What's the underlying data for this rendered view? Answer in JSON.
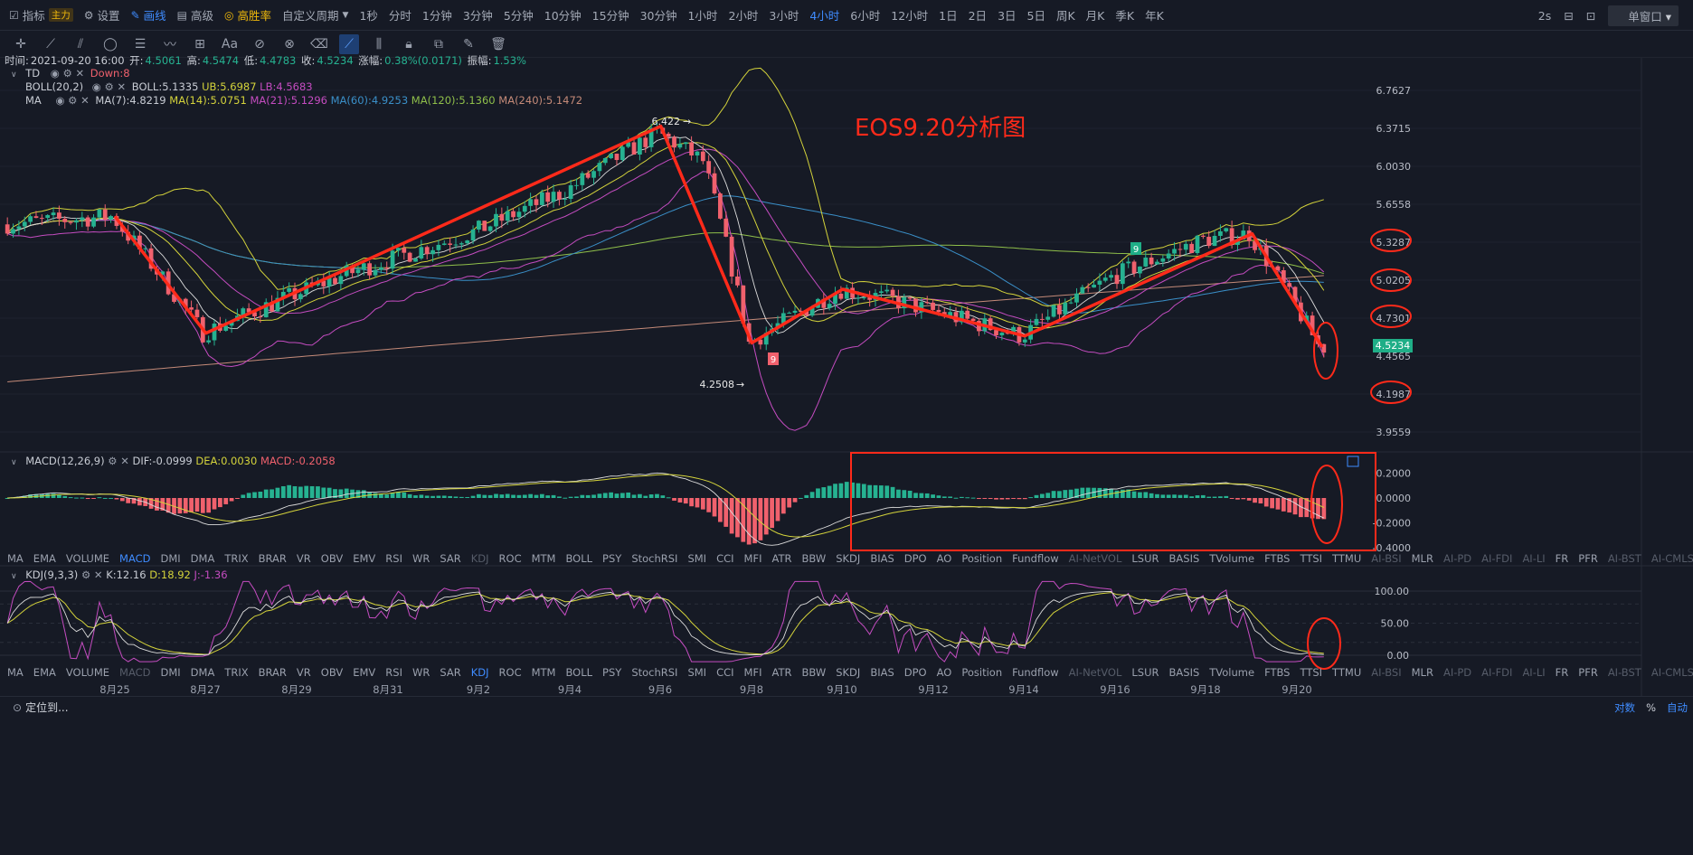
{
  "top": {
    "indicator_label": "指标",
    "main_tag": "主力",
    "settings_label": "设置",
    "draw_label": "画线",
    "advanced_label": "高级",
    "winrate_label": "高胜率",
    "custom_period_label": "自定义周期",
    "periods": [
      "1秒",
      "分时",
      "1分钟",
      "3分钟",
      "5分钟",
      "10分钟",
      "15分钟",
      "30分钟",
      "1小时",
      "2小时",
      "3小时",
      "4小时",
      "6小时",
      "12小时",
      "1日",
      "2日",
      "3日",
      "5日",
      "周K",
      "月K",
      "季K",
      "年K"
    ],
    "active_period": "4小时",
    "refresh": "2s",
    "window_label": "单窗口"
  },
  "ohlc": {
    "time_label": "时间:",
    "time": "2021-09-20 16:00",
    "open_label": "开:",
    "open": "4.5061",
    "high_label": "高:",
    "high": "4.5474",
    "low_label": "低:",
    "low": "4.4783",
    "close_label": "收:",
    "close": "4.5234",
    "change_label": "涨幅:",
    "change": "0.38%(0.0171)",
    "amp_label": "振幅:",
    "amp": "1.53%"
  },
  "overlays": {
    "td": {
      "name": "TD",
      "value": "Down:8"
    },
    "boll": {
      "name": "BOLL(20,2)",
      "mid": "BOLL:5.1335",
      "ub": "UB:5.6987",
      "lb": "LB:4.5683"
    },
    "ma": {
      "name": "MA",
      "ma7": "MA(7):4.8219",
      "ma14": "MA(14):5.0751",
      "ma21": "MA(21):5.1296",
      "ma60": "MA(60):4.9253",
      "ma120": "MA(120):5.1360",
      "ma240": "MA(240):5.1472"
    }
  },
  "macd_info": {
    "name": "MACD(12,26,9)",
    "dif": "DIF:-0.0999",
    "dea": "DEA:0.0030",
    "macd": "MACD:-0.2058"
  },
  "kdj_info": {
    "name": "KDJ(9,3,3)",
    "k": "K:12.16",
    "d": "D:18.92",
    "j": "J:-1.36"
  },
  "indicator_tabs": [
    "MA",
    "EMA",
    "VOLUME",
    "MACD",
    "DMI",
    "DMA",
    "TRIX",
    "BRAR",
    "VR",
    "OBV",
    "EMV",
    "RSI",
    "WR",
    "SAR",
    "KDJ",
    "ROC",
    "MTM",
    "BOLL",
    "PSY",
    "StochRSI",
    "SMI",
    "CCI",
    "MFI",
    "ATR",
    "BBW",
    "SKDJ",
    "BIAS",
    "DPO",
    "AO",
    "Position",
    "Fundflow",
    "AI-NetVOL",
    "LSUR",
    "BASIS",
    "TVolume",
    "FTBS",
    "TTSI",
    "TTMU",
    "AI-BSI",
    "MLR",
    "AI-PD",
    "AI-FDI",
    "AI-LI",
    "FR",
    "PFR",
    "AI-BST",
    "AI-CMLSI"
  ],
  "tabs_row1_active": "MACD",
  "tabs_row2_active": "KDJ",
  "dates": [
    "8月25",
    "8月27",
    "8月29",
    "8月31",
    "9月2",
    "9月4",
    "9月6",
    "9月8",
    "9月10",
    "9月12",
    "9月14",
    "9月16",
    "9月18",
    "9月20"
  ],
  "bottom": {
    "locate": "定位到...",
    "log": "对数",
    "percent": "%",
    "auto": "自动"
  },
  "annotation_title": "EOS9.20分析图",
  "colors": {
    "up": "#26b291",
    "down": "#f0616d",
    "draw": "#ff2a1a",
    "accent": "#3f8cff",
    "boll": "#d4d33b",
    "ma60": "#3a8fc8",
    "ma240": "#c48a78",
    "lb": "#c44cc0"
  },
  "chart_data": {
    "type": "candlestick",
    "interval": "4小时",
    "x_range": [
      "2021-08-24",
      "2021-09-20"
    ],
    "price_axis_ticks": [
      "6.7627",
      "6.3715",
      "6.0030",
      "5.6558",
      "5.3287",
      "5.0205",
      "4.7301",
      "4.4565",
      "4.1987",
      "3.9559"
    ],
    "current_price": "4.5234",
    "marked_high": "6.422",
    "marked_low": "4.2508",
    "td_markers": [
      "9",
      "9"
    ],
    "circled_levels": [
      "5.3287",
      "5.0205",
      "4.7301",
      "4.1987"
    ],
    "price_path": [
      {
        "date": "8月24",
        "price": 5.48
      },
      {
        "date": "8月25",
        "price": 5.55
      },
      {
        "date": "8月27",
        "price": 4.62
      },
      {
        "date": "8月30",
        "price": 5.05
      },
      {
        "date": "9月2",
        "price": 5.42
      },
      {
        "date": "9月4",
        "price": 5.78
      },
      {
        "date": "9月6",
        "price": 6.33
      },
      {
        "date": "9月7",
        "price": 6.05
      },
      {
        "date": "9月8",
        "price": 4.55
      },
      {
        "date": "9月10",
        "price": 4.95
      },
      {
        "date": "9月11",
        "price": 4.88
      },
      {
        "date": "9月14",
        "price": 4.6
      },
      {
        "date": "9月16",
        "price": 5.05
      },
      {
        "date": "9月18",
        "price": 5.35
      },
      {
        "date": "9月19",
        "price": 5.4
      },
      {
        "date": "9月20",
        "price": 4.52
      }
    ],
    "macd_axis_ticks": [
      "0.2000",
      "0.0000",
      "-0.2000",
      "-0.4000"
    ],
    "kdj_axis_ticks": [
      "100.00",
      "50.00",
      "0.00"
    ]
  }
}
